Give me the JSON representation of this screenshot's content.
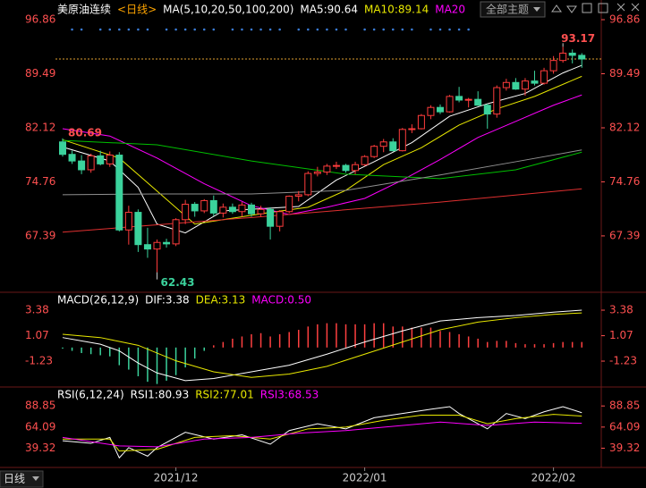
{
  "chart_data": [
    {
      "type": "candlestick",
      "title": "美原油连续",
      "period": "<日线>",
      "indicator": "MA(5,10,20,50,100,200)",
      "up_color": "#ff3c3c",
      "down_color": "#3bd29c",
      "open": [
        80.2,
        78.5,
        77.6,
        76.4,
        78.3,
        77.2,
        78.4,
        68.2,
        70.6,
        66.2,
        65.6,
        66.5,
        66.3,
        69.6,
        71.7,
        70.8,
        72.2,
        70.5,
        71.3,
        70.7,
        71.6,
        70.4,
        71.0,
        68.7,
        70.7,
        72.8,
        73.0,
        75.9,
        76.1,
        76.9,
        77.0,
        76.3,
        77.1,
        78.2,
        79.6,
        80.2,
        79.0,
        81.9,
        82.0,
        83.8,
        84.9,
        84.3,
        86.4,
        85.9,
        86.0,
        85.2,
        84.0,
        87.6,
        88.3,
        87.4,
        88.5,
        88.2,
        89.9,
        91.3,
        92.3,
        92.0
      ],
      "high": [
        80.69,
        79.0,
        78.4,
        78.6,
        79.0,
        78.9,
        78.8,
        71.5,
        71.0,
        68.5,
        66.9,
        67.0,
        69.8,
        72.3,
        72.0,
        72.4,
        72.9,
        71.8,
        71.8,
        72.0,
        71.9,
        71.5,
        71.3,
        70.9,
        72.9,
        73.5,
        76.2,
        76.8,
        77.2,
        77.5,
        77.2,
        77.5,
        78.4,
        79.8,
        80.6,
        80.7,
        82.1,
        82.6,
        84.0,
        85.2,
        85.3,
        86.6,
        87.7,
        86.2,
        87.1,
        85.4,
        87.9,
        88.8,
        88.9,
        88.9,
        89.9,
        90.3,
        91.9,
        93.17,
        92.8,
        92.3
      ],
      "low": [
        78.2,
        77.2,
        75.8,
        76.0,
        77.0,
        76.8,
        68.0,
        66.2,
        65.2,
        64.4,
        62.43,
        65.8,
        66.0,
        69.0,
        70.0,
        70.5,
        70.1,
        69.9,
        70.4,
        70.0,
        70.0,
        70.0,
        66.9,
        68.0,
        70.5,
        72.1,
        72.8,
        75.5,
        75.7,
        76.5,
        76.0,
        75.8,
        76.9,
        78.0,
        78.8,
        78.9,
        78.9,
        81.4,
        81.9,
        83.3,
        84.0,
        84.2,
        85.6,
        84.9,
        85.1,
        82.0,
        83.5,
        87.2,
        87.3,
        86.5,
        87.9,
        88.0,
        89.5,
        91.0,
        90.9,
        90.3
      ],
      "close": [
        78.5,
        77.6,
        76.4,
        78.3,
        77.2,
        78.4,
        68.2,
        70.6,
        66.2,
        65.6,
        66.5,
        66.3,
        69.6,
        71.7,
        70.8,
        72.2,
        70.5,
        71.3,
        70.7,
        71.6,
        70.4,
        71.0,
        68.7,
        70.7,
        72.8,
        73.0,
        75.9,
        76.1,
        76.9,
        76.99,
        76.3,
        77.1,
        78.2,
        79.6,
        80.2,
        79.0,
        81.9,
        82.0,
        83.8,
        84.9,
        84.3,
        86.4,
        85.9,
        86.0,
        85.2,
        84.0,
        87.6,
        88.3,
        87.4,
        88.5,
        88.2,
        89.9,
        91.3,
        92.3,
        92.0,
        91.5
      ],
      "series": [
        {
          "name": "MA5:90.64",
          "color": "#ffffff",
          "x": [
            0,
            5,
            8,
            10,
            13,
            17,
            21,
            25,
            29,
            33,
            37,
            41,
            45,
            49,
            53,
            55
          ],
          "values": [
            79.5,
            77.6,
            74,
            69,
            67.8,
            70.8,
            71.1,
            71.4,
            75,
            77.5,
            80.1,
            83.7,
            85.4,
            86.8,
            89.6,
            90.64
          ]
        },
        {
          "name": "MA10:89.14",
          "color": "#e8e800",
          "x": [
            0,
            6,
            10,
            14,
            18,
            22,
            26,
            30,
            34,
            38,
            42,
            46,
            50,
            55
          ],
          "values": [
            80.5,
            78,
            73.5,
            69,
            69.8,
            70.6,
            71.3,
            73.6,
            77.1,
            79.4,
            82.5,
            84.7,
            86.4,
            89.14
          ]
        },
        {
          "name": "MA20",
          "color": "#ff00ff",
          "x": [
            0,
            5,
            10,
            15,
            20,
            24,
            28,
            32,
            36,
            40,
            44,
            48,
            52,
            55
          ],
          "values": [
            82,
            81,
            78,
            74.5,
            71.5,
            70.3,
            71.3,
            72.5,
            75,
            77.8,
            80.8,
            83,
            85.2,
            86.6
          ]
        },
        {
          "color": "#00c000",
          "x": [
            0,
            10,
            20,
            30,
            40,
            48,
            55
          ],
          "values": [
            80.4,
            79.8,
            77.6,
            75.8,
            75.2,
            76.4,
            78.8
          ]
        },
        {
          "color": "#909090",
          "x": [
            0,
            10,
            20,
            30,
            40,
            48,
            55
          ],
          "values": [
            73,
            73.1,
            73.1,
            73.6,
            75.7,
            77.5,
            79.1
          ]
        },
        {
          "color": "#e03030",
          "x": [
            0,
            20,
            40,
            55
          ],
          "values": [
            67.9,
            69.9,
            72.0,
            73.8
          ]
        }
      ],
      "ylim": [
        59.95,
        98.08
      ],
      "yticks": [
        96.86,
        89.49,
        82.12,
        74.76,
        67.39
      ],
      "grid": false
    },
    {
      "type": "macd",
      "indicator": "MACD(26,12,9)",
      "name": "MACD:0.50",
      "up_color": "#ff4040",
      "down_color": "#3bd29c",
      "values": [
        -0.1,
        -0.3,
        -0.5,
        -0.6,
        -0.7,
        -0.8,
        -1.6,
        -2.0,
        -2.6,
        -3.1,
        -3.3,
        -3.0,
        -2.5,
        -1.8,
        -1.0,
        -0.3,
        0.2,
        0.5,
        0.8,
        1.0,
        1.2,
        1.3,
        1.0,
        1.2,
        1.4,
        1.6,
        1.9,
        2.1,
        2.2,
        2.2,
        2.1,
        2.1,
        2.1,
        2.2,
        2.2,
        1.9,
        1.9,
        1.8,
        1.8,
        1.8,
        1.5,
        1.4,
        1.2,
        1.0,
        0.8,
        0.5,
        0.6,
        0.6,
        0.4,
        0.3,
        0.3,
        0.3,
        0.4,
        0.5,
        0.5,
        0.5
      ],
      "series": [
        {
          "name": "DIF:3.38",
          "color": "#ffffff",
          "x": [
            0,
            4,
            6,
            8,
            10,
            13,
            16,
            20,
            24,
            28,
            32,
            36,
            40,
            44,
            48,
            52,
            55
          ],
          "values": [
            0.9,
            0.3,
            -0.3,
            -1.4,
            -2.3,
            -3.0,
            -2.8,
            -2.2,
            -1.6,
            -0.6,
            0.5,
            1.5,
            2.4,
            2.7,
            2.9,
            3.2,
            3.38
          ]
        },
        {
          "name": "DEA:3.13",
          "color": "#e8e800",
          "x": [
            0,
            4,
            8,
            12,
            16,
            20,
            24,
            28,
            32,
            36,
            40,
            44,
            48,
            52,
            55
          ],
          "values": [
            1.2,
            0.9,
            0.2,
            -1.2,
            -2.2,
            -2.7,
            -2.4,
            -1.7,
            -0.6,
            0.5,
            1.6,
            2.3,
            2.7,
            3.0,
            3.13
          ]
        }
      ],
      "ylim": [
        -3.33,
        4.11
      ],
      "yticks": [
        -1.23,
        1.07,
        3.38
      ],
      "grid": false
    },
    {
      "type": "line",
      "indicator": "RSI(6,12,24)",
      "categories": [
        null,
        null,
        null,
        null,
        null,
        null,
        null,
        null,
        null,
        null,
        null,
        null,
        "2021/12",
        null,
        null,
        null,
        null,
        null,
        null,
        null,
        null,
        null,
        null,
        null,
        null,
        null,
        null,
        null,
        null,
        null,
        null,
        null,
        "2022/01",
        null,
        null,
        null,
        null,
        null,
        null,
        null,
        null,
        null,
        null,
        null,
        null,
        null,
        null,
        null,
        null,
        null,
        null,
        null,
        "2022/02",
        null,
        null,
        null
      ],
      "series": [
        {
          "name": "RSI1:80.93",
          "color": "#ffffff",
          "x": [
            0,
            3,
            5,
            6,
            7,
            9,
            10,
            13,
            16,
            19,
            22,
            24,
            27,
            30,
            33,
            36,
            39,
            41,
            42,
            45,
            47,
            49,
            51,
            53,
            55
          ],
          "values": [
            48,
            45,
            52,
            28,
            40,
            30,
            40,
            58,
            50,
            55,
            44,
            60,
            68,
            62,
            75,
            80,
            85,
            88,
            80,
            62,
            80,
            74,
            82,
            88,
            80.93
          ]
        },
        {
          "name": "RSI2:77.01",
          "color": "#e8e800",
          "x": [
            0,
            5,
            6,
            10,
            14,
            18,
            22,
            26,
            30,
            34,
            38,
            42,
            45,
            48,
            52,
            55
          ],
          "values": [
            50,
            50,
            36,
            38,
            52,
            54,
            50,
            62,
            64,
            72,
            78,
            78,
            68,
            74,
            79,
            77.01
          ]
        },
        {
          "name": "RSI3:68.53",
          "color": "#ff00ff",
          "x": [
            0,
            6,
            10,
            15,
            20,
            25,
            30,
            35,
            40,
            45,
            50,
            55
          ],
          "values": [
            52,
            42,
            41,
            50,
            52,
            57,
            60,
            65,
            70,
            66,
            70,
            68.53
          ]
        }
      ],
      "ylim": [
        17.8,
        98.5
      ],
      "yticks": [
        39.32,
        64.09,
        88.85
      ],
      "grid": false
    }
  ],
  "ui": {
    "theme_button": "全部主题",
    "period_button": "日线"
  }
}
